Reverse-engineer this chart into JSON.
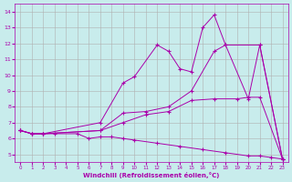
{
  "xlabel": "Windchill (Refroidissement éolien,°C)",
  "xlim": [
    -0.5,
    23.5
  ],
  "ylim": [
    4.5,
    14.5
  ],
  "xticks": [
    0,
    1,
    2,
    3,
    4,
    5,
    6,
    7,
    8,
    9,
    10,
    11,
    12,
    13,
    14,
    15,
    16,
    17,
    18,
    19,
    20,
    21,
    22,
    23
  ],
  "yticks": [
    5,
    6,
    7,
    8,
    9,
    10,
    11,
    12,
    13,
    14
  ],
  "bg_color": "#c8ecec",
  "grid_color": "#b0b0b0",
  "line_color": "#aa00aa",
  "lines": [
    {
      "x": [
        0,
        1,
        2,
        7,
        9,
        10,
        12,
        13,
        14,
        15,
        16,
        17,
        18,
        21,
        23
      ],
      "y": [
        6.5,
        6.3,
        6.3,
        7.0,
        9.5,
        9.9,
        11.9,
        11.5,
        10.4,
        10.2,
        13.0,
        13.8,
        11.9,
        11.9,
        4.7
      ]
    },
    {
      "x": [
        0,
        1,
        2,
        7,
        9,
        11,
        13,
        15,
        17,
        18,
        20,
        21,
        23
      ],
      "y": [
        6.5,
        6.3,
        6.3,
        6.5,
        7.6,
        7.7,
        8.0,
        9.0,
        11.5,
        11.9,
        8.5,
        11.9,
        4.7
      ]
    },
    {
      "x": [
        0,
        1,
        2,
        7,
        9,
        11,
        13,
        15,
        17,
        19,
        20,
        21,
        23
      ],
      "y": [
        6.5,
        6.3,
        6.3,
        6.5,
        7.0,
        7.5,
        7.7,
        8.4,
        8.5,
        8.5,
        8.6,
        8.6,
        4.7
      ]
    },
    {
      "x": [
        0,
        1,
        2,
        3,
        5,
        6,
        7,
        8,
        9,
        10,
        12,
        14,
        16,
        18,
        20,
        21,
        22,
        23
      ],
      "y": [
        6.5,
        6.3,
        6.3,
        6.3,
        6.3,
        6.0,
        6.1,
        6.1,
        6.0,
        5.9,
        5.7,
        5.5,
        5.3,
        5.1,
        4.9,
        4.9,
        4.8,
        4.7
      ]
    }
  ]
}
